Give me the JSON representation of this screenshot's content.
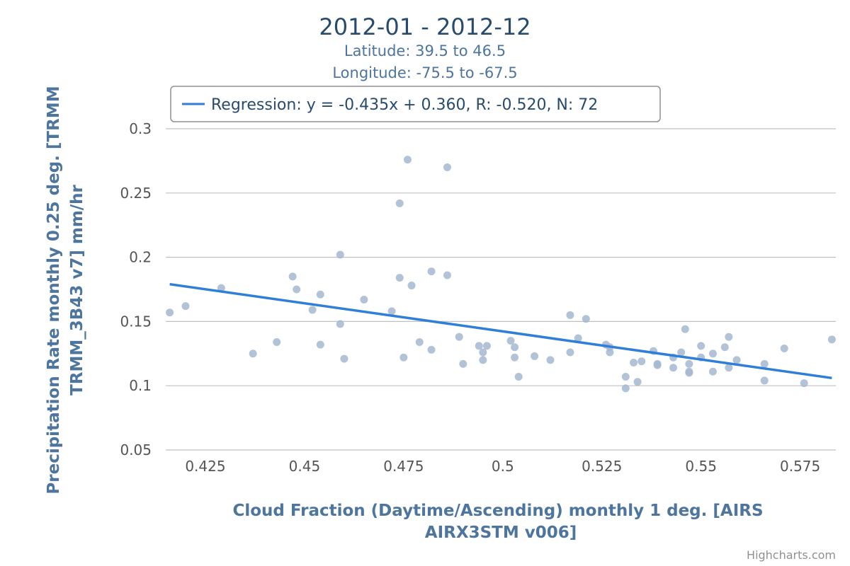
{
  "title": "2012-01 - 2012-12",
  "subtitles": [
    "Latitude: 39.5 to 46.5",
    "Longitude: -75.5 to -67.5"
  ],
  "legend": {
    "label": "Regression: y = -0.435x + 0.360, R: -0.520, N: 72",
    "placement": "top-left"
  },
  "xaxis": {
    "title_lines": [
      "Cloud Fraction (Daytime/Ascending) monthly 1 deg. [AIRS",
      "AIRX3STM v006]"
    ],
    "ticks": [
      0.425,
      0.45,
      0.475,
      0.5,
      0.525,
      0.55,
      0.575
    ],
    "tick_labels": [
      "0.425",
      "0.45",
      "0.475",
      "0.5",
      "0.525",
      "0.55",
      "0.575"
    ]
  },
  "yaxis": {
    "title_lines": [
      "Precipitation Rate monthly 0.25 deg. [TRMM",
      "TRMM_3B43 v7] mm/hr"
    ],
    "ticks": [
      0.05,
      0.1,
      0.15,
      0.2,
      0.25,
      0.3
    ],
    "tick_labels": [
      "0.05",
      "0.1",
      "0.15",
      "0.2",
      "0.25",
      "0.3"
    ]
  },
  "credits": "Highcharts.com",
  "colors": {
    "points": "#a6b8d0",
    "regression": "#2f7ed8",
    "grid": "#c0c0c0",
    "title": "#274b6d",
    "subtitle": "#4d759e"
  },
  "chart_data": {
    "type": "scatter",
    "xlim": [
      0.415,
      0.584
    ],
    "ylim": [
      0.05,
      0.3
    ],
    "grid": "horizontal",
    "series": [
      {
        "name": "",
        "type": "scatter",
        "points": [
          [
            0.416,
            0.157
          ],
          [
            0.42,
            0.162
          ],
          [
            0.429,
            0.176
          ],
          [
            0.437,
            0.125
          ],
          [
            0.443,
            0.134
          ],
          [
            0.447,
            0.185
          ],
          [
            0.448,
            0.175
          ],
          [
            0.452,
            0.159
          ],
          [
            0.454,
            0.171
          ],
          [
            0.454,
            0.132
          ],
          [
            0.459,
            0.202
          ],
          [
            0.459,
            0.148
          ],
          [
            0.46,
            0.121
          ],
          [
            0.465,
            0.167
          ],
          [
            0.472,
            0.158
          ],
          [
            0.474,
            0.184
          ],
          [
            0.474,
            0.242
          ],
          [
            0.475,
            0.122
          ],
          [
            0.476,
            0.276
          ],
          [
            0.477,
            0.178
          ],
          [
            0.479,
            0.134
          ],
          [
            0.482,
            0.189
          ],
          [
            0.482,
            0.128
          ],
          [
            0.486,
            0.27
          ],
          [
            0.486,
            0.186
          ],
          [
            0.489,
            0.138
          ],
          [
            0.49,
            0.117
          ],
          [
            0.494,
            0.131
          ],
          [
            0.495,
            0.12
          ],
          [
            0.495,
            0.126
          ],
          [
            0.496,
            0.131
          ],
          [
            0.502,
            0.135
          ],
          [
            0.503,
            0.13
          ],
          [
            0.503,
            0.122
          ],
          [
            0.504,
            0.107
          ],
          [
            0.508,
            0.123
          ],
          [
            0.512,
            0.12
          ],
          [
            0.517,
            0.126
          ],
          [
            0.517,
            0.155
          ],
          [
            0.519,
            0.137
          ],
          [
            0.521,
            0.152
          ],
          [
            0.526,
            0.132
          ],
          [
            0.527,
            0.13
          ],
          [
            0.527,
            0.126
          ],
          [
            0.531,
            0.107
          ],
          [
            0.531,
            0.098
          ],
          [
            0.533,
            0.118
          ],
          [
            0.534,
            0.103
          ],
          [
            0.535,
            0.119
          ],
          [
            0.538,
            0.127
          ],
          [
            0.539,
            0.116
          ],
          [
            0.539,
            0.117
          ],
          [
            0.543,
            0.122
          ],
          [
            0.543,
            0.114
          ],
          [
            0.545,
            0.126
          ],
          [
            0.546,
            0.144
          ],
          [
            0.547,
            0.117
          ],
          [
            0.547,
            0.111
          ],
          [
            0.547,
            0.11
          ],
          [
            0.55,
            0.122
          ],
          [
            0.55,
            0.131
          ],
          [
            0.553,
            0.125
          ],
          [
            0.553,
            0.111
          ],
          [
            0.556,
            0.13
          ],
          [
            0.557,
            0.138
          ],
          [
            0.557,
            0.114
          ],
          [
            0.559,
            0.12
          ],
          [
            0.566,
            0.117
          ],
          [
            0.566,
            0.104
          ],
          [
            0.571,
            0.129
          ],
          [
            0.576,
            0.102
          ],
          [
            0.583,
            0.136
          ]
        ]
      },
      {
        "name": "Regression: y = -0.435x + 0.360, R: -0.520, N: 72",
        "type": "line",
        "points": [
          [
            0.416,
            0.179
          ],
          [
            0.583,
            0.106
          ]
        ]
      }
    ]
  }
}
